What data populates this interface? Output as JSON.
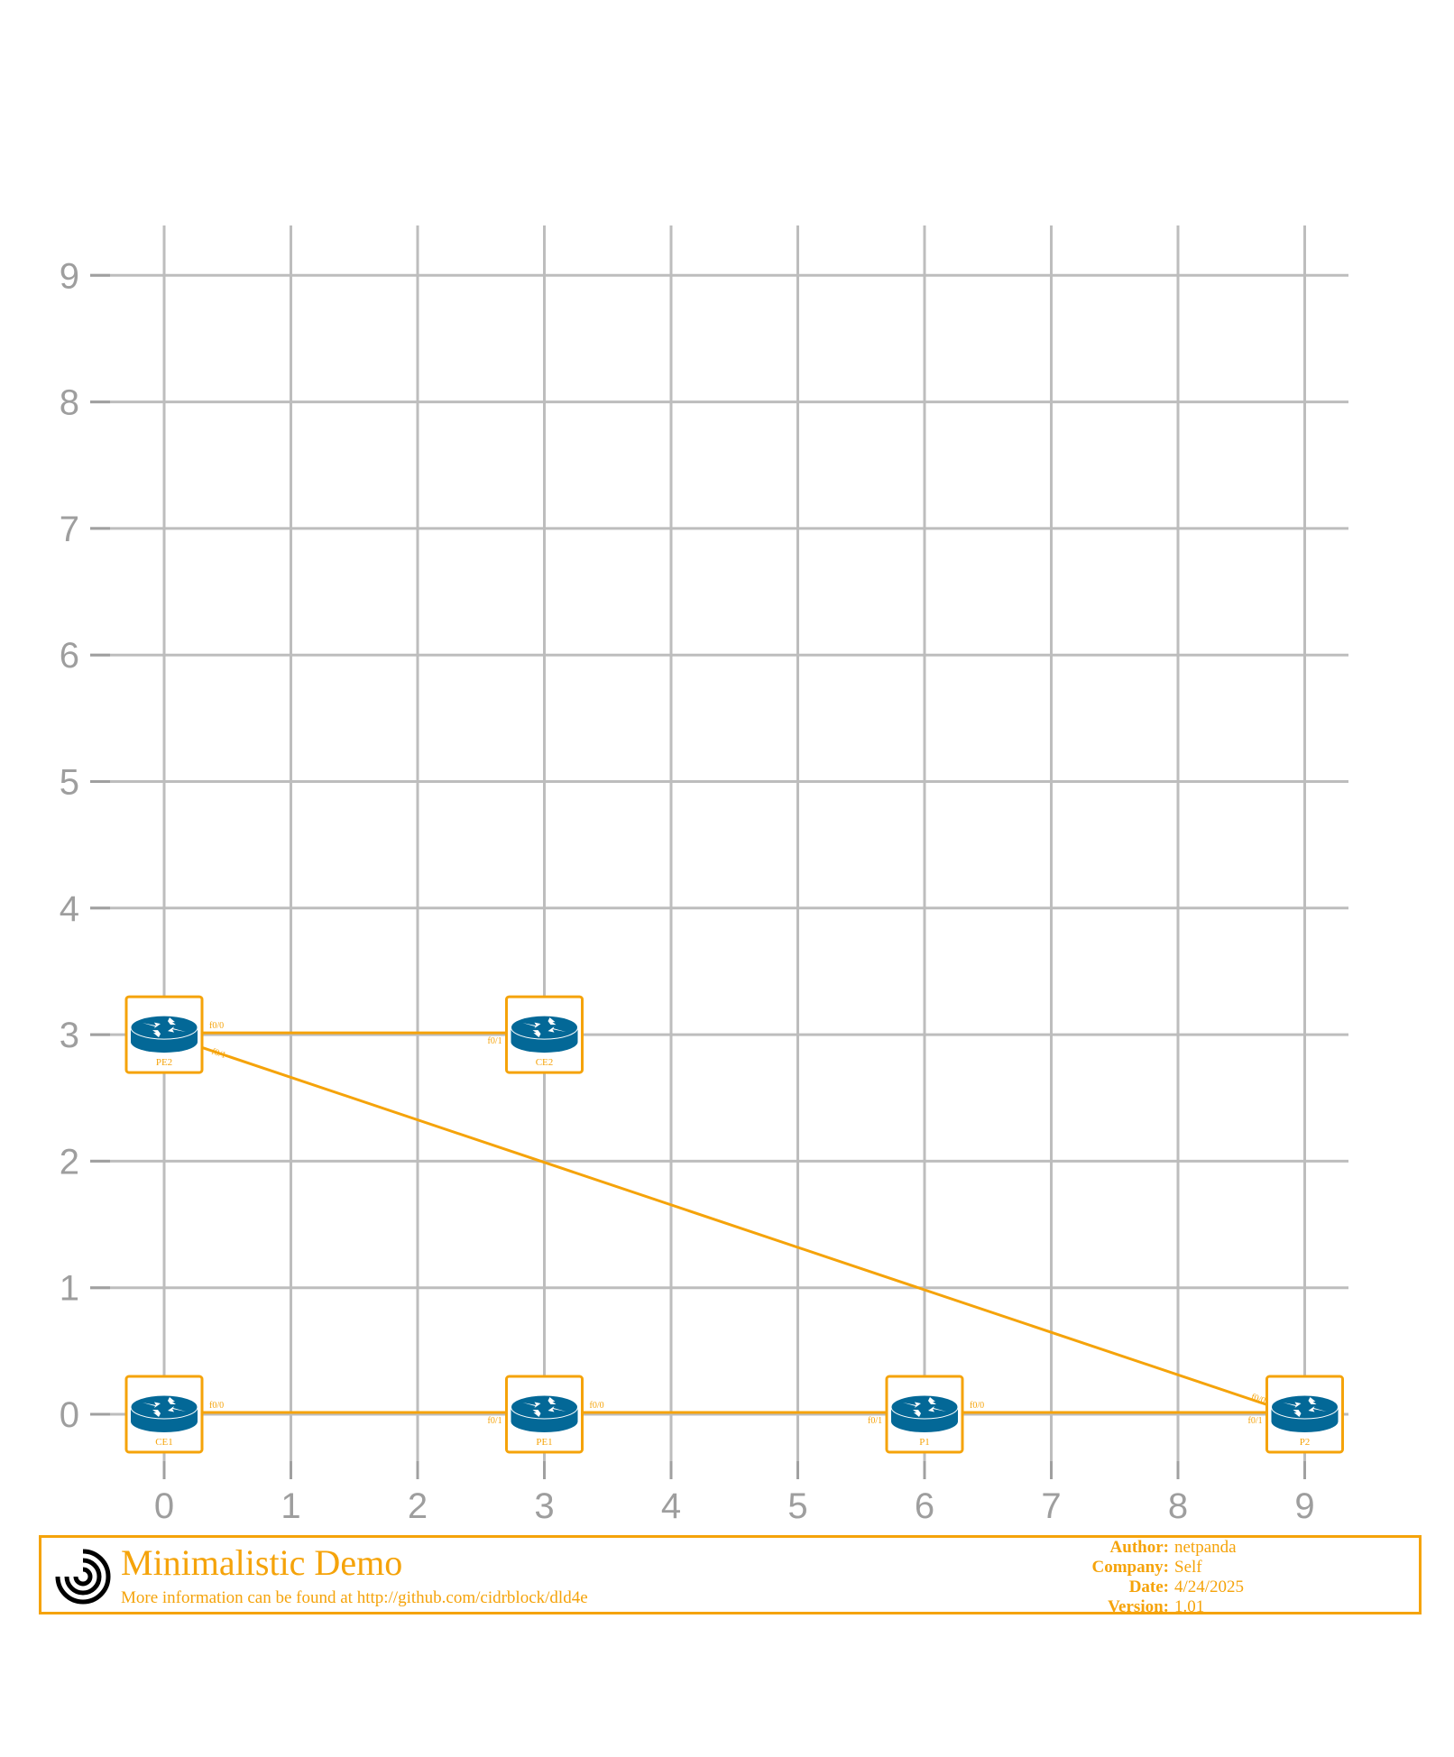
{
  "chart_data": {
    "type": "diagram",
    "x_ticks": [
      "0",
      "1",
      "2",
      "3",
      "4",
      "5",
      "6",
      "7",
      "8",
      "9"
    ],
    "y_ticks": [
      "0",
      "1",
      "2",
      "3",
      "4",
      "5",
      "6",
      "7",
      "8",
      "9"
    ],
    "grid": true,
    "devices": [
      {
        "id": "PE2",
        "label": "PE2",
        "x": 0,
        "y": 3
      },
      {
        "id": "CE2",
        "label": "CE2",
        "x": 3,
        "y": 3
      },
      {
        "id": "CE1",
        "label": "CE1",
        "x": 0,
        "y": 0
      },
      {
        "id": "PE1",
        "label": "PE1",
        "x": 3,
        "y": 0
      },
      {
        "id": "P1",
        "label": "P1",
        "x": 6,
        "y": 0
      },
      {
        "id": "P2",
        "label": "P2",
        "x": 9,
        "y": 0
      }
    ],
    "links": [
      {
        "from": "PE2",
        "from_port": "f0/0",
        "to": "CE2",
        "to_port": "f0/1"
      },
      {
        "from": "PE2",
        "from_port": "f0/1",
        "to": "P2",
        "to_port": "f0/0"
      },
      {
        "from": "CE1",
        "from_port": "f0/0",
        "to": "PE1",
        "to_port": "f0/1"
      },
      {
        "from": "PE1",
        "from_port": "f0/0",
        "to": "P1",
        "to_port": "f0/1"
      },
      {
        "from": "P1",
        "from_port": "f0/0",
        "to": "P2",
        "to_port": "f0/1"
      }
    ]
  },
  "colors": {
    "accent": "#f5a30a",
    "router": "#036897",
    "grid": "#bdbdbd",
    "axis_text": "#9e9e9e"
  },
  "title_block": {
    "logo_icon": "arc-logo-icon",
    "title": "Minimalistic Demo",
    "subtitle": "More information can be found at http://github.com/cidrblock/dld4e",
    "meta": [
      {
        "key": "Author:",
        "value": "netpanda"
      },
      {
        "key": "Company:",
        "value": "Self"
      },
      {
        "key": "Date:",
        "value": "4/24/2025"
      },
      {
        "key": "Version:",
        "value": "1.01"
      }
    ]
  }
}
